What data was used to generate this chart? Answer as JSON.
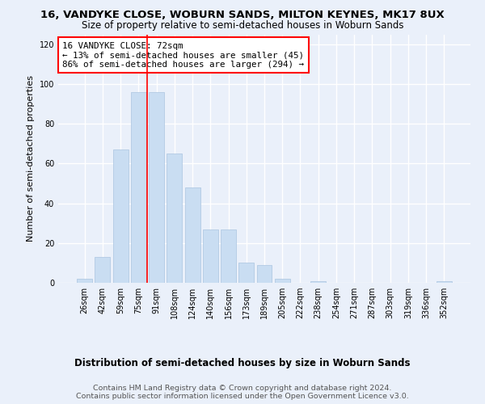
{
  "title": "16, VANDYKE CLOSE, WOBURN SANDS, MILTON KEYNES, MK17 8UX",
  "subtitle": "Size of property relative to semi-detached houses in Woburn Sands",
  "xlabel": "Distribution of semi-detached houses by size in Woburn Sands",
  "ylabel": "Number of semi-detached properties",
  "bar_labels": [
    "26sqm",
    "42sqm",
    "59sqm",
    "75sqm",
    "91sqm",
    "108sqm",
    "124sqm",
    "140sqm",
    "156sqm",
    "173sqm",
    "189sqm",
    "205sqm",
    "222sqm",
    "238sqm",
    "254sqm",
    "271sqm",
    "287sqm",
    "303sqm",
    "319sqm",
    "336sqm",
    "352sqm"
  ],
  "bar_values": [
    2,
    13,
    67,
    96,
    96,
    65,
    48,
    27,
    27,
    10,
    9,
    2,
    0,
    1,
    0,
    0,
    0,
    0,
    0,
    0,
    1
  ],
  "bar_color": "#c9ddf2",
  "bar_edge_color": "#aac4e0",
  "vline_x": 3.5,
  "vline_color": "red",
  "annotation_box_text": "16 VANDYKE CLOSE: 72sqm\n← 13% of semi-detached houses are smaller (45)\n86% of semi-detached houses are larger (294) →",
  "box_edge_color": "red",
  "ylim": [
    0,
    125
  ],
  "yticks": [
    0,
    20,
    40,
    60,
    80,
    100,
    120
  ],
  "footer_line1": "Contains HM Land Registry data © Crown copyright and database right 2024.",
  "footer_line2": "Contains public sector information licensed under the Open Government Licence v3.0.",
  "bg_color": "#eaf0fa",
  "plot_bg_color": "#eaf0fa",
  "grid_color": "white",
  "title_fontsize": 9.5,
  "subtitle_fontsize": 8.5,
  "ylabel_fontsize": 8.0,
  "xlabel_fontsize": 8.5,
  "tick_fontsize": 7.0,
  "annotation_fontsize": 7.8,
  "footer_fontsize": 6.8
}
